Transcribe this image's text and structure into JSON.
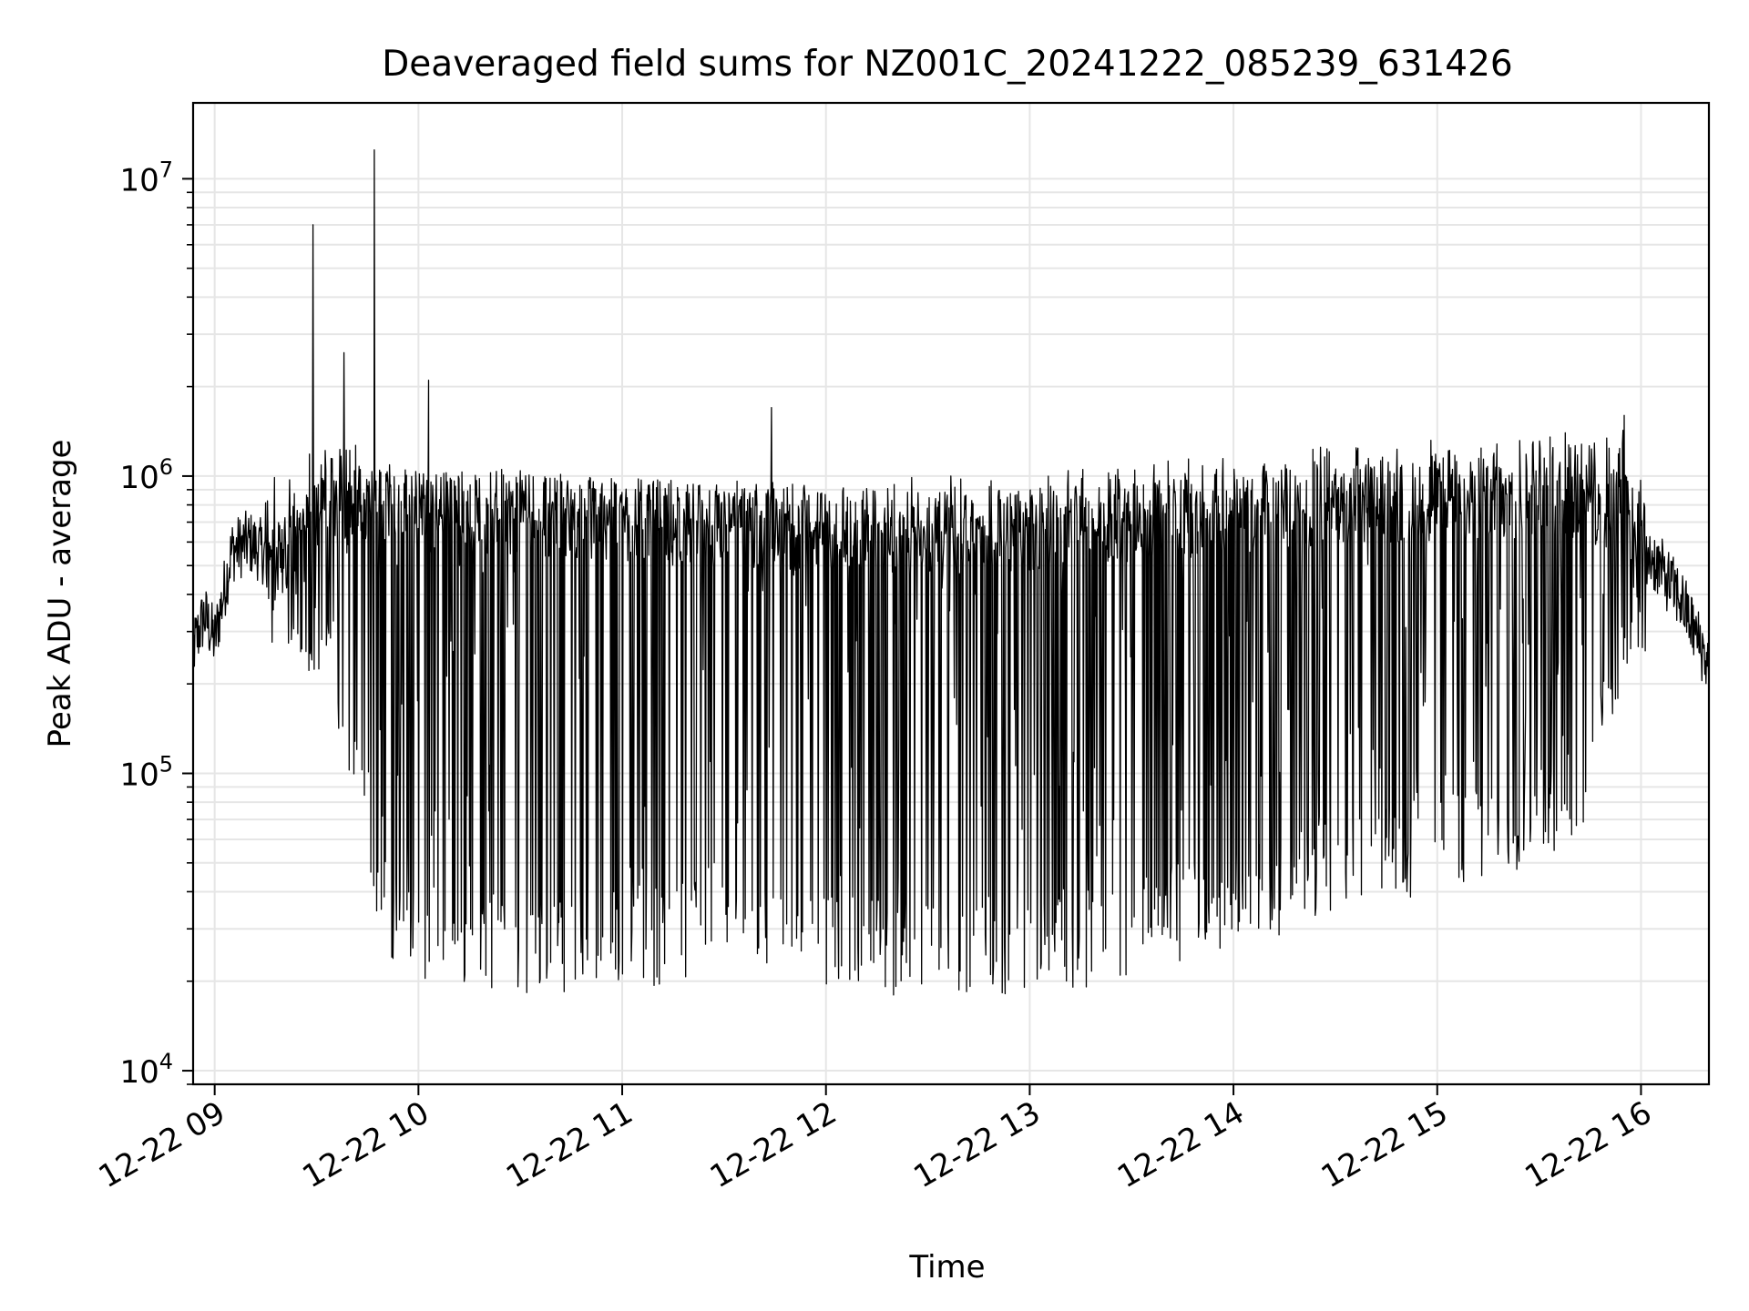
{
  "chart_data": {
    "type": "line",
    "title": "Deaveraged field sums for NZ001C_20241222_085239_631426",
    "xlabel": "Time",
    "ylabel": "Peak ADU - average",
    "yscale": "log",
    "ylim": [
      9000,
      18000000
    ],
    "xlim": [
      "2024-12-22 08:53:39",
      "2024-12-22 16:20:00"
    ],
    "grid": true,
    "line_color": "#000000",
    "x_ticks": [
      {
        "value": "2024-12-22 09:00",
        "label": "12-22 09"
      },
      {
        "value": "2024-12-22 10:00",
        "label": "12-22 10"
      },
      {
        "value": "2024-12-22 11:00",
        "label": "12-22 11"
      },
      {
        "value": "2024-12-22 12:00",
        "label": "12-22 12"
      },
      {
        "value": "2024-12-22 13:00",
        "label": "12-22 13"
      },
      {
        "value": "2024-12-22 14:00",
        "label": "12-22 14"
      },
      {
        "value": "2024-12-22 15:00",
        "label": "12-22 15"
      },
      {
        "value": "2024-12-22 16:00",
        "label": "12-22 16"
      }
    ],
    "y_ticks": [
      {
        "value": 10000,
        "base": "10",
        "exp": "4"
      },
      {
        "value": 100000,
        "base": "10",
        "exp": "5"
      },
      {
        "value": 1000000,
        "base": "10",
        "exp": "6"
      },
      {
        "value": 10000000,
        "base": "10",
        "exp": "7"
      }
    ],
    "series": [
      {
        "baseline": [
          [
            "2024-12-22 08:53",
            250000
          ],
          [
            "2024-12-22 08:57",
            340000
          ],
          [
            "2024-12-22 09:00",
            280000
          ],
          [
            "2024-12-22 09:05",
            560000
          ],
          [
            "2024-12-22 09:10",
            600000
          ],
          [
            "2024-12-22 09:20",
            500000
          ],
          [
            "2024-12-22 09:30",
            700000
          ],
          [
            "2024-12-22 09:45",
            750000
          ],
          [
            "2024-12-22 10:00",
            700000
          ],
          [
            "2024-12-22 10:30",
            680000
          ],
          [
            "2024-12-22 11:00",
            650000
          ],
          [
            "2024-12-22 11:30",
            620000
          ],
          [
            "2024-12-22 12:00",
            600000
          ],
          [
            "2024-12-22 12:30",
            580000
          ],
          [
            "2024-12-22 13:00",
            600000
          ],
          [
            "2024-12-22 13:30",
            650000
          ],
          [
            "2024-12-22 14:00",
            680000
          ],
          [
            "2024-12-22 14:30",
            720000
          ],
          [
            "2024-12-22 15:00",
            760000
          ],
          [
            "2024-12-22 15:30",
            780000
          ],
          [
            "2024-12-22 15:55",
            700000
          ],
          [
            "2024-12-22 16:05",
            500000
          ],
          [
            "2024-12-22 16:12",
            380000
          ],
          [
            "2024-12-22 16:20",
            230000
          ]
        ],
        "upper_envelope": [
          [
            "2024-12-22 09:20",
            1000000
          ],
          [
            "2024-12-22 09:30",
            1400000
          ],
          [
            "2024-12-22 10:00",
            1100000
          ],
          [
            "2024-12-22 11:00",
            1000000
          ],
          [
            "2024-12-22 12:00",
            950000
          ],
          [
            "2024-12-22 13:00",
            1050000
          ],
          [
            "2024-12-22 14:00",
            1200000
          ],
          [
            "2024-12-22 15:00",
            1350000
          ],
          [
            "2024-12-22 15:55",
            1450000
          ],
          [
            "2024-12-22 16:05",
            700000
          ]
        ],
        "lower_envelope": [
          [
            "2024-12-22 09:00",
            250000
          ],
          [
            "2024-12-22 09:25",
            250000
          ],
          [
            "2024-12-22 09:35",
            150000
          ],
          [
            "2024-12-22 09:45",
            50000
          ],
          [
            "2024-12-22 09:50",
            25000
          ],
          [
            "2024-12-22 10:00",
            20000
          ],
          [
            "2024-12-22 10:30",
            18000
          ],
          [
            "2024-12-22 11:00",
            19000
          ],
          [
            "2024-12-22 11:30",
            20000
          ],
          [
            "2024-12-22 12:00",
            18000
          ],
          [
            "2024-12-22 12:30",
            17000
          ],
          [
            "2024-12-22 13:00",
            18000
          ],
          [
            "2024-12-22 13:30",
            20000
          ],
          [
            "2024-12-22 14:00",
            26000
          ],
          [
            "2024-12-22 14:30",
            32000
          ],
          [
            "2024-12-22 15:00",
            38000
          ],
          [
            "2024-12-22 15:30",
            48000
          ],
          [
            "2024-12-22 15:45",
            70000
          ],
          [
            "2024-12-22 15:55",
            200000
          ],
          [
            "2024-12-22 16:05",
            300000
          ]
        ],
        "spikes": [
          [
            "2024-12-22 09:29",
            7000000
          ],
          [
            "2024-12-22 09:38",
            2600000
          ],
          [
            "2024-12-22 09:47",
            12500000
          ],
          [
            "2024-12-22 10:03",
            2100000
          ],
          [
            "2024-12-22 11:44",
            1700000
          ],
          [
            "2024-12-22 15:55",
            1600000
          ]
        ]
      }
    ]
  }
}
